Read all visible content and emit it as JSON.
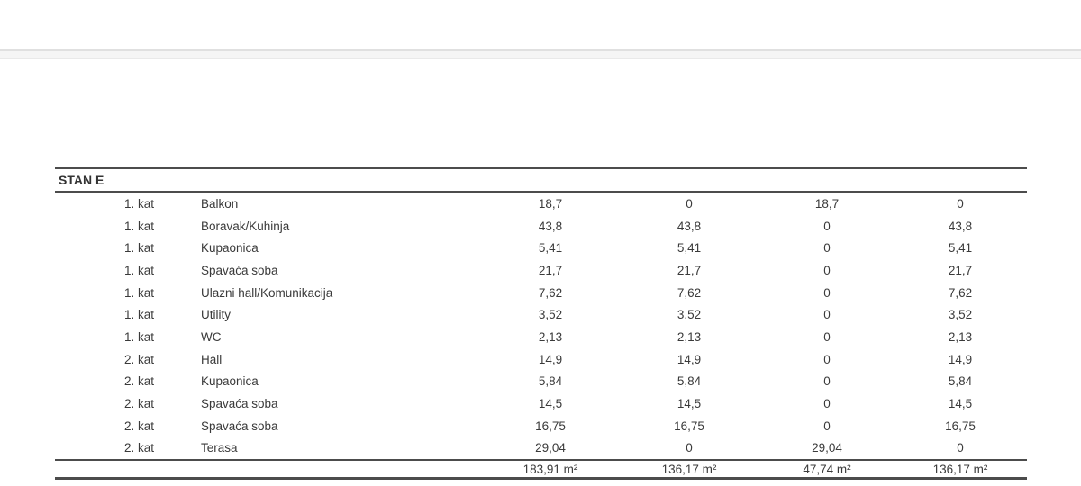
{
  "table": {
    "section_header": "STAN E",
    "rows": [
      {
        "floor": "1. kat",
        "room": "Balkon",
        "values": [
          "18,7",
          "0",
          "18,7",
          "0"
        ]
      },
      {
        "floor": "1. kat",
        "room": "Boravak/Kuhinja",
        "values": [
          "43,8",
          "43,8",
          "0",
          "43,8"
        ]
      },
      {
        "floor": "1. kat",
        "room": "Kupaonica",
        "values": [
          "5,41",
          "5,41",
          "0",
          "5,41"
        ]
      },
      {
        "floor": "1. kat",
        "room": "Spavaća soba",
        "values": [
          "21,7",
          "21,7",
          "0",
          "21,7"
        ]
      },
      {
        "floor": "1. kat",
        "room": "Ulazni hall/Komunikacija",
        "values": [
          "7,62",
          "7,62",
          "0",
          "7,62"
        ]
      },
      {
        "floor": "1. kat",
        "room": "Utility",
        "values": [
          "3,52",
          "3,52",
          "0",
          "3,52"
        ]
      },
      {
        "floor": "1. kat",
        "room": "WC",
        "values": [
          "2,13",
          "2,13",
          "0",
          "2,13"
        ]
      },
      {
        "floor": "2. kat",
        "room": "Hall",
        "values": [
          "14,9",
          "14,9",
          "0",
          "14,9"
        ]
      },
      {
        "floor": "2. kat",
        "room": "Kupaonica",
        "values": [
          "5,84",
          "5,84",
          "0",
          "5,84"
        ]
      },
      {
        "floor": "2. kat",
        "room": "Spavaća soba",
        "values": [
          "14,5",
          "14,5",
          "0",
          "14,5"
        ]
      },
      {
        "floor": "2. kat",
        "room": "Spavaća soba",
        "values": [
          "16,75",
          "16,75",
          "0",
          "16,75"
        ]
      },
      {
        "floor": "2. kat",
        "room": "Terasa",
        "values": [
          "29,04",
          "0",
          "29,04",
          "0"
        ]
      }
    ],
    "totals": [
      "183,91 m²",
      "136,17 m²",
      "47,74 m²",
      "136,17 m²"
    ]
  },
  "colors": {
    "rule": "#4c4c4c",
    "text": "#3a3a3a",
    "band_fill": "#f5f5f5",
    "band_edge": "#e0e0e0"
  }
}
